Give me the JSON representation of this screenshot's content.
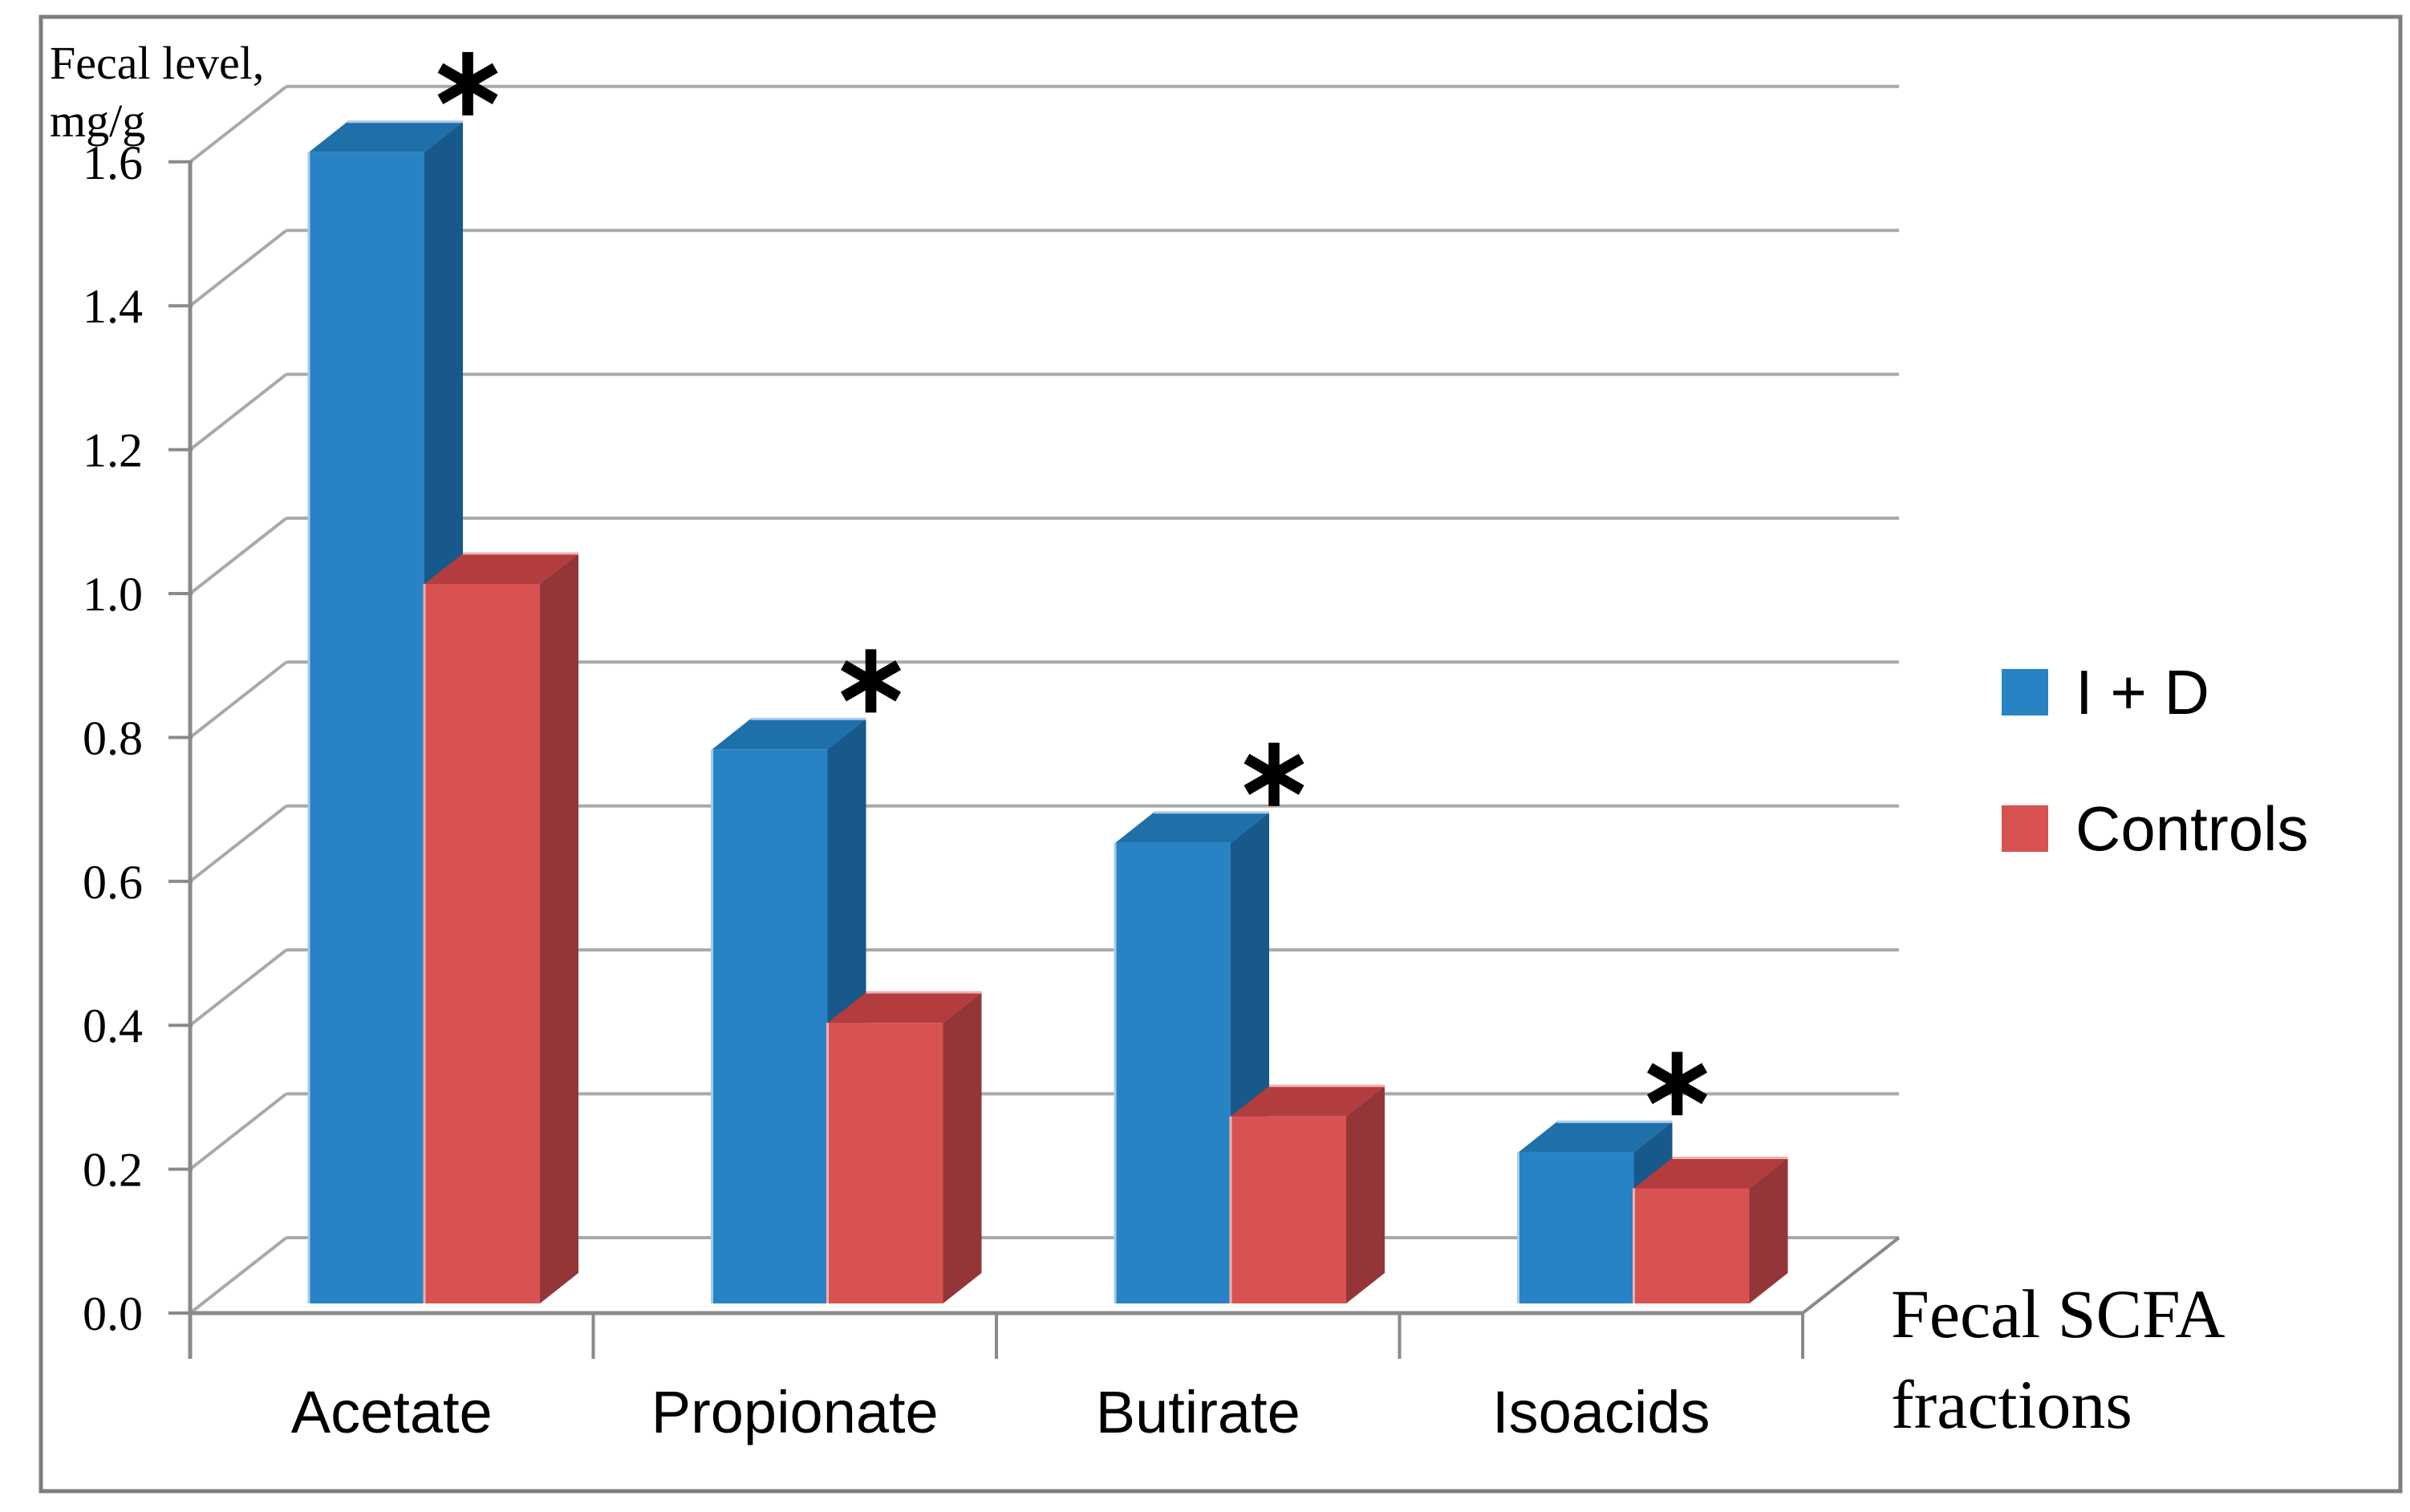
{
  "chart_data": {
    "type": "bar",
    "projection": "3d",
    "title": "",
    "categories": [
      "Acetate",
      "Propionate",
      "Butirate",
      "Isoacids"
    ],
    "series": [
      {
        "name": "I + D",
        "values": [
          1.6,
          0.77,
          0.64,
          0.21
        ]
      },
      {
        "name": "Controls",
        "values": [
          1.0,
          0.39,
          0.26,
          0.16
        ]
      }
    ],
    "ylabel": "Fecal level, mg/g",
    "ylabel_lines": [
      "Fecal level,",
      "mg/g"
    ],
    "xlabel": "Fecal SCFA fractions",
    "xlabel_lines": [
      "Fecal SCFA",
      "fractions"
    ],
    "ylim": [
      0.0,
      1.6
    ],
    "ytick_step": 0.2,
    "ytick_labels": [
      "0.0",
      "0.2",
      "0.4",
      "0.6",
      "0.8",
      "1.0",
      "1.2",
      "1.4",
      "1.6"
    ],
    "grid": true,
    "legend_position": "right",
    "significance": {
      "marker": "∗",
      "marked_categories": [
        "Acetate",
        "Propionate",
        "Butirate",
        "Isoacids"
      ]
    }
  },
  "legend": {
    "items": [
      {
        "label": "I + D",
        "swatch_color": "#2883C5"
      },
      {
        "label": "Controls",
        "swatch_color": "#D95252"
      }
    ]
  },
  "colors": {
    "series1_front": "#2883C5",
    "series1_side": "#17598A",
    "series1_top": "#1F6FA9",
    "series1_highlight": "#A9CBE9",
    "series2_front": "#D95252",
    "series2_side": "#943538",
    "series2_top": "#B23C3E",
    "series2_highlight": "#F0B0B0",
    "gridline": "#A9A9A9",
    "axis": "#8A8A8A",
    "frame_border": "#7E7E7E",
    "text": "#000000",
    "background": "#FFFFFF"
  }
}
